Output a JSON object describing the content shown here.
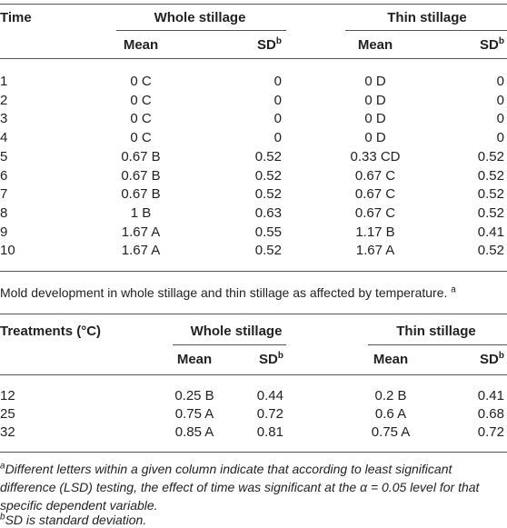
{
  "table1": {
    "header": {
      "time": "Time",
      "whole": "Whole stillage",
      "thin": "Thin stillage",
      "mean": "Mean",
      "sd": "SD",
      "sd_note": "b"
    },
    "rows": [
      [
        "1",
        "0 C",
        "0",
        "0 D",
        "0"
      ],
      [
        "2",
        "0 C",
        "0",
        "0 D",
        "0"
      ],
      [
        "3",
        "0 C",
        "0",
        "0 D",
        "0"
      ],
      [
        "4",
        "0 C",
        "0",
        "0 D",
        "0"
      ],
      [
        "5",
        "0.67 B",
        "0.52",
        "0.33 CD",
        "0.52"
      ],
      [
        "6",
        "0.67 B",
        "0.52",
        "0.67 C",
        "0.52"
      ],
      [
        "7",
        "0.67 B",
        "0.52",
        "0.67 C",
        "0.52"
      ],
      [
        "8",
        "1 B",
        "0.63",
        "0.67 C",
        "0.52"
      ],
      [
        "9",
        "1.67 A",
        "0.55",
        "1.17 B",
        "0.41"
      ],
      [
        "10",
        "1.67 A",
        "0.52",
        "1.67 A",
        "0.52"
      ]
    ]
  },
  "caption": {
    "text": "Mold development in whole stillage and thin stillage as affected by temperature.",
    "note": "a"
  },
  "table2": {
    "header": {
      "treatments": "Treatments (°C)",
      "whole": "Whole stillage",
      "thin": "Thin stillage",
      "mean": "Mean",
      "sd": "SD",
      "sd_note": "b"
    },
    "rows": [
      [
        "12",
        "0.25 B",
        "0.44",
        "0.2 B",
        "0.41"
      ],
      [
        "25",
        "0.75 A",
        "0.72",
        "0.6 A",
        "0.68"
      ],
      [
        "32",
        "0.85 A",
        "0.81",
        "0.75 A",
        "0.72"
      ]
    ]
  },
  "footnotes": [
    {
      "mark": "a",
      "text": "Different letters within a given column indicate that according to least significant difference (LSD) testing, the effect of time was significant at the α = 0.05 level for that specific dependent variable."
    },
    {
      "mark": "b",
      "text": "SD is standard deviation."
    }
  ]
}
